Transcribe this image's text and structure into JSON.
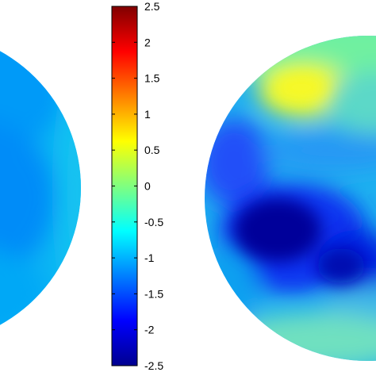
{
  "chart_data": {
    "type": "heatmap",
    "colorbar": {
      "colormap": "jet",
      "min": -2.5,
      "max": 2.5,
      "ticks": [
        2.5,
        2,
        1.5,
        1,
        0.5,
        0,
        -0.5,
        -1,
        -1.5,
        -2,
        -2.5
      ],
      "tick_labels": [
        "2.5",
        "2",
        "1.5",
        "1",
        "0.5",
        "0",
        "-0.5",
        "-1",
        "-1.5",
        "-2",
        "-2.5"
      ]
    },
    "maps": [
      {
        "id": "left",
        "description_values": "mostly uniform field between about -1.3 and -0.6",
        "regions": [
          {
            "area": "outer rim",
            "value": -0.6
          },
          {
            "area": "upper interior",
            "value": -0.9
          },
          {
            "area": "central interior",
            "value": -1.25
          },
          {
            "area": "lower interior",
            "value": -1.0
          }
        ]
      },
      {
        "id": "right",
        "description_values": "field from about -2.4 to 0.7 with a strong low in the lower-left center and a high near the top",
        "regions": [
          {
            "area": "top band",
            "value": 0.0
          },
          {
            "area": "top-center high",
            "value": 0.6
          },
          {
            "area": "left lobe",
            "value": -1.6
          },
          {
            "area": "center low",
            "value": -2.4
          },
          {
            "area": "right low",
            "value": -2.0
          },
          {
            "area": "right side",
            "value": -0.8
          },
          {
            "area": "bottom rim",
            "value": -0.3
          }
        ]
      }
    ]
  }
}
